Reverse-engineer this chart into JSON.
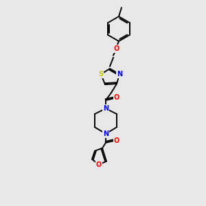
{
  "bg_color": "#e8e8e8",
  "bond_color": "#000000",
  "atom_colors": {
    "O": "#ff0000",
    "N": "#0000ff",
    "S": "#cccc00",
    "C": "#000000"
  },
  "figsize": [
    3.0,
    3.0
  ],
  "dpi": 100
}
